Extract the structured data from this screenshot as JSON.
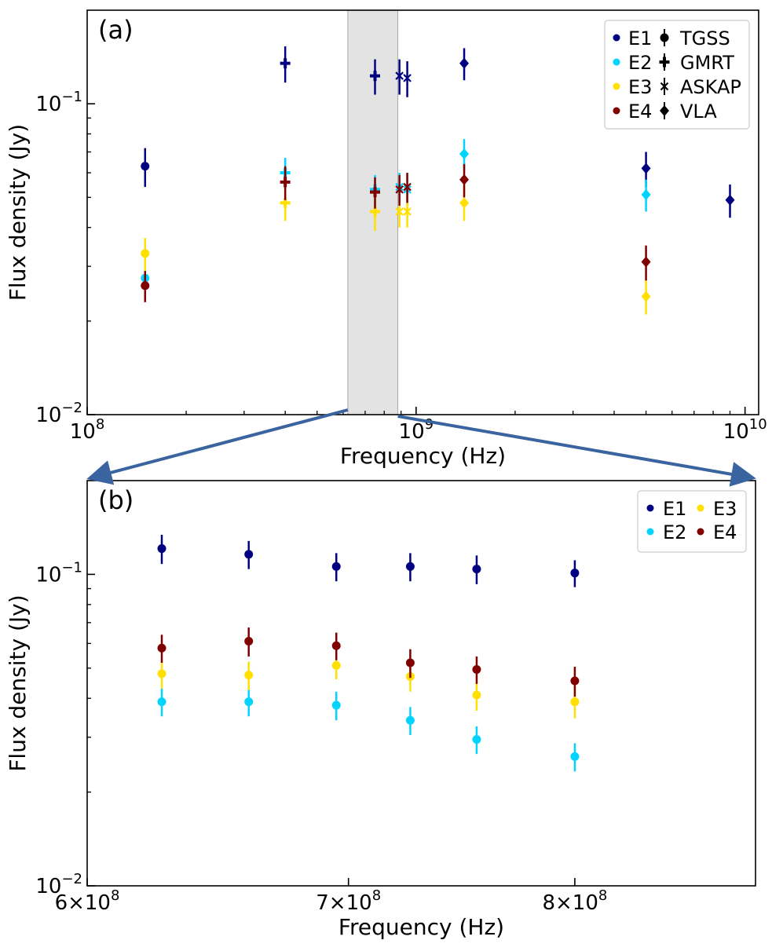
{
  "colors": {
    "E1": "#000080",
    "E2": "#00d4ff",
    "E3": "#ffe000",
    "E4": "#800000",
    "shade": "#e3e3e3",
    "arrow": "#3a64a0",
    "axis": "#000000"
  },
  "chart_data": [
    {
      "panel": "(a)",
      "type": "scatter",
      "xscale": "log",
      "yscale": "log",
      "xlabel": "Frequency (Hz)",
      "ylabel": "Flux density (Jy)",
      "xlim": [
        100000000.0,
        11000000000.0
      ],
      "ylim": [
        0.01,
        0.2
      ],
      "x_ticks": [
        {
          "value": 100000000.0,
          "base": "10",
          "exp": "8"
        },
        {
          "value": 1000000000.0,
          "base": "10",
          "exp": "9"
        },
        {
          "value": 10000000000.0,
          "base": "10",
          "exp": "10"
        }
      ],
      "y_ticks": [
        {
          "value": 0.01,
          "base": "10",
          "exp": "−2"
        },
        {
          "value": 0.1,
          "base": "10",
          "exp": "−1"
        }
      ],
      "shaded_band": [
        620000000.0,
        880000000.0
      ],
      "legend": {
        "position": "top-right",
        "epochs": [
          "E1",
          "E2",
          "E3",
          "E4"
        ],
        "instruments": [
          {
            "name": "TGSS",
            "marker": "circle"
          },
          {
            "name": "GMRT",
            "marker": "plus"
          },
          {
            "name": "ASKAP",
            "marker": "x"
          },
          {
            "name": "VLA",
            "marker": "diamond"
          }
        ]
      },
      "series": [
        {
          "name": "E1",
          "points": [
            {
              "x": 150000000.0,
              "y": 0.063,
              "err": 0.009,
              "m": "circle"
            },
            {
              "x": 400000000.0,
              "y": 0.135,
              "err": 0.018,
              "m": "plus"
            },
            {
              "x": 750000000.0,
              "y": 0.123,
              "err": 0.016,
              "m": "plus"
            },
            {
              "x": 890000000.0,
              "y": 0.123,
              "err": 0.016,
              "m": "x"
            },
            {
              "x": 940000000.0,
              "y": 0.121,
              "err": 0.016,
              "m": "x"
            },
            {
              "x": 1400000000.0,
              "y": 0.135,
              "err": 0.016,
              "m": "diamond"
            },
            {
              "x": 5000000000.0,
              "y": 0.062,
              "err": 0.008,
              "m": "diamond"
            },
            {
              "x": 9000000000.0,
              "y": 0.049,
              "err": 0.006,
              "m": "diamond"
            }
          ]
        },
        {
          "name": "E2",
          "points": [
            {
              "x": 150000000.0,
              "y": 0.0275,
              "err": 0.003,
              "m": "circle"
            },
            {
              "x": 400000000.0,
              "y": 0.06,
              "err": 0.007,
              "m": "plus"
            },
            {
              "x": 750000000.0,
              "y": 0.053,
              "err": 0.006,
              "m": "plus"
            },
            {
              "x": 890000000.0,
              "y": 0.054,
              "err": 0.006,
              "m": "x"
            },
            {
              "x": 940000000.0,
              "y": 0.053,
              "err": 0.006,
              "m": "x"
            },
            {
              "x": 1400000000.0,
              "y": 0.069,
              "err": 0.008,
              "m": "diamond"
            },
            {
              "x": 5000000000.0,
              "y": 0.051,
              "err": 0.006,
              "m": "diamond"
            }
          ]
        },
        {
          "name": "E3",
          "points": [
            {
              "x": 150000000.0,
              "y": 0.033,
              "err": 0.004,
              "m": "circle"
            },
            {
              "x": 400000000.0,
              "y": 0.048,
              "err": 0.006,
              "m": "plus"
            },
            {
              "x": 750000000.0,
              "y": 0.045,
              "err": 0.006,
              "m": "plus"
            },
            {
              "x": 890000000.0,
              "y": 0.045,
              "err": 0.005,
              "m": "x"
            },
            {
              "x": 940000000.0,
              "y": 0.045,
              "err": 0.005,
              "m": "x"
            },
            {
              "x": 1400000000.0,
              "y": 0.048,
              "err": 0.006,
              "m": "diamond"
            },
            {
              "x": 5000000000.0,
              "y": 0.024,
              "err": 0.003,
              "m": "diamond"
            }
          ]
        },
        {
          "name": "E4",
          "points": [
            {
              "x": 150000000.0,
              "y": 0.026,
              "err": 0.003,
              "m": "circle"
            },
            {
              "x": 400000000.0,
              "y": 0.056,
              "err": 0.007,
              "m": "plus"
            },
            {
              "x": 750000000.0,
              "y": 0.052,
              "err": 0.006,
              "m": "plus"
            },
            {
              "x": 890000000.0,
              "y": 0.053,
              "err": 0.006,
              "m": "x"
            },
            {
              "x": 940000000.0,
              "y": 0.054,
              "err": 0.006,
              "m": "x"
            },
            {
              "x": 1400000000.0,
              "y": 0.057,
              "err": 0.007,
              "m": "diamond"
            },
            {
              "x": 5000000000.0,
              "y": 0.031,
              "err": 0.004,
              "m": "diamond"
            }
          ]
        }
      ]
    },
    {
      "panel": "(b)",
      "type": "scatter",
      "xscale": "log",
      "yscale": "log",
      "xlabel": "Frequency (Hz)",
      "ylabel": "Flux density (Jy)",
      "xlim": [
        600000000.0,
        890000000.0
      ],
      "ylim": [
        0.01,
        0.2
      ],
      "x_ticks": [
        {
          "value": 600000000.0,
          "base": "6×10",
          "exp": "8"
        },
        {
          "value": 700000000.0,
          "base": "7×10",
          "exp": "8"
        },
        {
          "value": 800000000.0,
          "base": "8×10",
          "exp": "8"
        }
      ],
      "y_ticks": [
        {
          "value": 0.01,
          "base": "10",
          "exp": "−2"
        },
        {
          "value": 0.1,
          "base": "10",
          "exp": "−1"
        }
      ],
      "legend": {
        "position": "top-right",
        "entries": [
          "E1",
          "E3",
          "E2",
          "E4"
        ]
      },
      "x": [
        627000000.0,
        660000000.0,
        695000000.0,
        726000000.0,
        755000000.0,
        800000000.0
      ],
      "series": [
        {
          "name": "E1",
          "values": [
            0.121,
            0.116,
            0.106,
            0.106,
            0.104,
            0.101
          ],
          "err": [
            0.013,
            0.012,
            0.011,
            0.011,
            0.011,
            0.01
          ]
        },
        {
          "name": "E2",
          "values": [
            0.039,
            0.039,
            0.038,
            0.034,
            0.0295,
            0.026
          ],
          "err": [
            0.004,
            0.004,
            0.004,
            0.0035,
            0.003,
            0.0027
          ]
        },
        {
          "name": "E3",
          "values": [
            0.048,
            0.0475,
            0.051,
            0.047,
            0.041,
            0.039
          ],
          "err": [
            0.005,
            0.005,
            0.005,
            0.005,
            0.0045,
            0.0045
          ]
        },
        {
          "name": "E4",
          "values": [
            0.058,
            0.061,
            0.059,
            0.052,
            0.0495,
            0.0455
          ],
          "err": [
            0.006,
            0.0065,
            0.006,
            0.0055,
            0.005,
            0.005
          ]
        }
      ]
    }
  ]
}
